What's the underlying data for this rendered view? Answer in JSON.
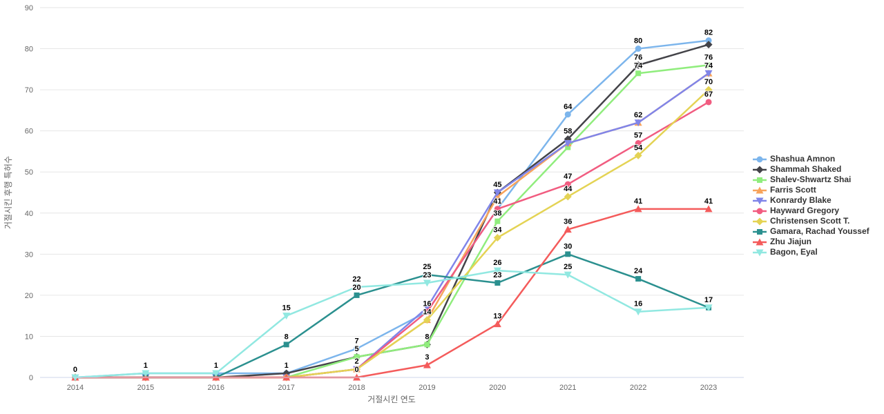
{
  "chart_data": {
    "type": "line",
    "categories": [
      "2014",
      "2015",
      "2016",
      "2017",
      "2018",
      "2019",
      "2020",
      "2021",
      "2022",
      "2023"
    ],
    "xlabel": "거절시킨 연도",
    "ylabel": "거절시킨 후행 특허수",
    "ylim": [
      0,
      90
    ],
    "yticks": [
      0,
      10,
      20,
      30,
      40,
      50,
      60,
      70,
      80,
      90
    ],
    "grid": "horizontal",
    "legend_position": "right",
    "series": [
      {
        "name": "Shashua Amnon",
        "color": "#7cb5ec",
        "marker": "circle",
        "values": [
          0,
          1,
          1,
          1,
          7,
          16,
          41,
          64,
          80,
          82
        ],
        "labeled": [
          0,
          1,
          2,
          3,
          4,
          6,
          7,
          8,
          9
        ]
      },
      {
        "name": "Shammah Shaked",
        "color": "#434348",
        "marker": "diamond",
        "values": [
          0,
          0,
          0,
          1,
          5,
          8,
          45,
          58,
          76,
          81
        ],
        "labeled": [
          6,
          7,
          8
        ]
      },
      {
        "name": "Shalev-Shwartz Shai",
        "color": "#90ed7d",
        "marker": "square",
        "values": [
          0,
          0,
          0,
          0,
          5,
          8,
          38,
          56,
          74,
          76
        ],
        "labeled": [
          4,
          5,
          6,
          8,
          9
        ]
      },
      {
        "name": "Farris Scott",
        "color": "#f7a35c",
        "marker": "triangle",
        "values": [
          0,
          0,
          0,
          0,
          2,
          14,
          44,
          57,
          62,
          74
        ],
        "labeled": []
      },
      {
        "name": "Konrardy Blake",
        "color": "#8085e9",
        "marker": "triangle-down",
        "values": [
          0,
          0,
          0,
          0,
          2,
          17,
          45,
          57,
          62,
          74
        ],
        "labeled": [
          8,
          9
        ]
      },
      {
        "name": "Hayward Gregory",
        "color": "#f15c80",
        "marker": "circle",
        "values": [
          0,
          0,
          0,
          0,
          2,
          16,
          41,
          47,
          57,
          67
        ],
        "labeled": [
          5,
          7,
          8,
          9
        ]
      },
      {
        "name": "Christensen Scott T.",
        "color": "#e4d354",
        "marker": "diamond",
        "values": [
          0,
          0,
          0,
          0,
          2,
          14,
          34,
          44,
          54,
          70
        ],
        "labeled": [
          4,
          5,
          6,
          7,
          8,
          9
        ]
      },
      {
        "name": "Gamara, Rachad Youssef",
        "color": "#2b908f",
        "marker": "square",
        "values": [
          0,
          0,
          0,
          8,
          20,
          25,
          23,
          30,
          24,
          17
        ],
        "labeled": [
          3,
          4,
          5,
          6,
          7,
          8,
          9
        ]
      },
      {
        "name": "Zhu Jiajun",
        "color": "#f45b5b",
        "marker": "triangle",
        "values": [
          0,
          0,
          0,
          0,
          0,
          3,
          13,
          36,
          41,
          41
        ],
        "labeled": [
          4,
          5,
          6,
          7,
          8,
          9
        ]
      },
      {
        "name": "Bagon, Eyal",
        "color": "#91e8e1",
        "marker": "triangle-down",
        "values": [
          0,
          1,
          1,
          15,
          22,
          23,
          26,
          25,
          16,
          17
        ],
        "labeled": [
          3,
          4,
          5,
          6,
          7,
          8
        ]
      }
    ],
    "colors": {
      "grid": "#e6e6e6",
      "axis_line": "#ccd6eb",
      "tick_text": "#666666",
      "axis_title_text": "#666666",
      "legend_text": "#333333",
      "data_label": "#000000"
    }
  }
}
